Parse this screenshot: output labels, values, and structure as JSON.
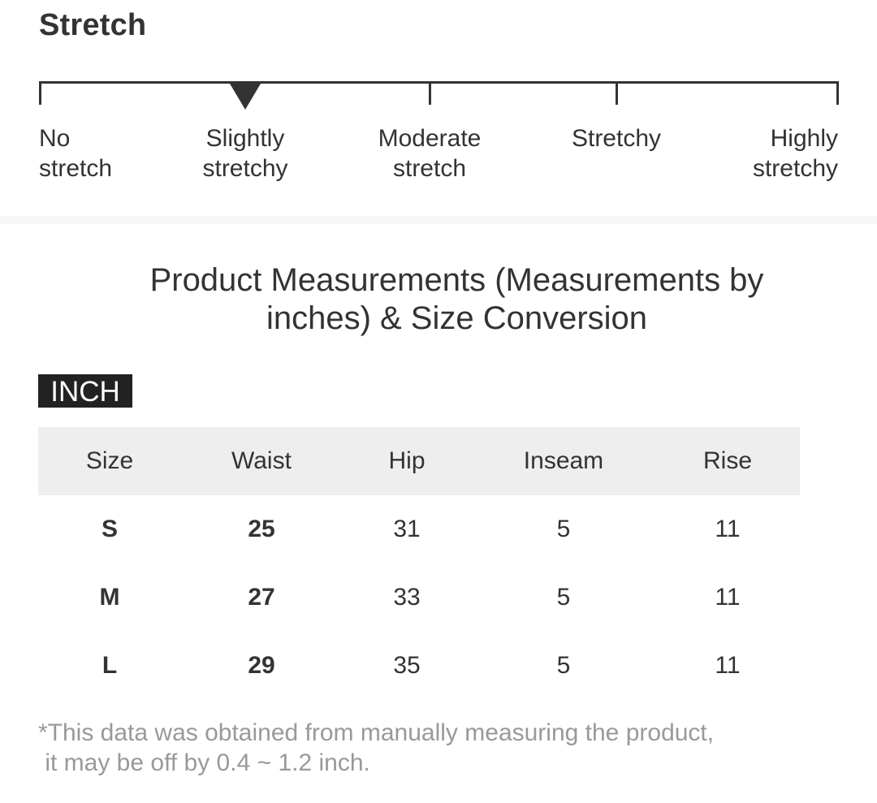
{
  "stretch": {
    "title": "Stretch",
    "levels": [
      {
        "label": "No\nstretch"
      },
      {
        "label": "Slightly\nstretchy"
      },
      {
        "label": "Moderate\nstretch"
      },
      {
        "label": "Stretchy"
      },
      {
        "label": "Highly\nstretchy"
      }
    ],
    "selected_level": "Slightly\nstretchy"
  },
  "measurements": {
    "heading": "Product Measurements (Measurements by inches) & Size Conversion",
    "unit_badge": "INCH",
    "columns": [
      "Size",
      "Waist",
      "Hip",
      "Inseam",
      "Rise"
    ],
    "rows": [
      {
        "size": "S",
        "waist": "25",
        "hip": "31",
        "inseam": "5",
        "rise": "11"
      },
      {
        "size": "M",
        "waist": "27",
        "hip": "33",
        "inseam": "5",
        "rise": "11"
      },
      {
        "size": "L",
        "waist": "29",
        "hip": "35",
        "inseam": "5",
        "rise": "11"
      }
    ],
    "footnote": "*This data was obtained from manually measuring the product,\n it may be off by 0.4 ~ 1.2 inch."
  },
  "colors": {
    "text": "#333333",
    "badge_bg": "#222222",
    "header_bg": "#eeeeee",
    "footnote": "#999999"
  }
}
